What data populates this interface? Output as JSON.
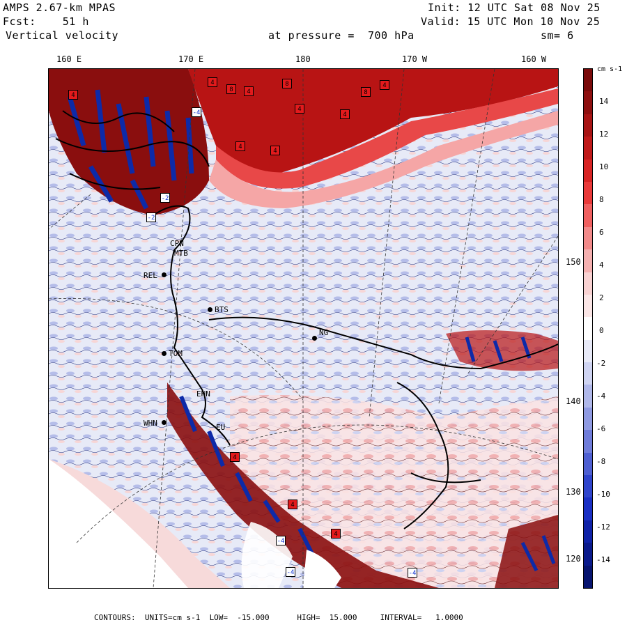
{
  "header": {
    "model": "AMPS 2.67-km MPAS",
    "fcst": "Fcst:    51 h",
    "field": "Vertical velocity",
    "init": "Init: 12 UTC Sat 08 Nov 25",
    "valid": "Valid: 15 UTC Mon 10 Nov 25",
    "pressure": "at pressure =  700 hPa",
    "smooth": "sm= 6"
  },
  "top_longitudes": [
    "160 E",
    "170 E",
    "180",
    "170 W",
    "160 W"
  ],
  "right_longitudes": [
    "150 W",
    "140 W",
    "130 W",
    "120 W"
  ],
  "colorbar": {
    "units_label": "cm s-1",
    "ticks": [
      "14",
      "12",
      "10",
      "8",
      "6",
      "4",
      "2",
      "0",
      "-2",
      "-4",
      "-6",
      "-8",
      "-10",
      "-12",
      "-14"
    ],
    "colors": [
      "#7a0a0a",
      "#8e0f0f",
      "#a81414",
      "#c01a1a",
      "#d82424",
      "#ea3a3a",
      "#f06060",
      "#f28a8a",
      "#f5b0b0",
      "#f9d2d2",
      "#fbe6e6",
      "#ffffff",
      "#e8eaf8",
      "#cfd4f2",
      "#b0b8ea",
      "#8f9ae2",
      "#6f7cda",
      "#4e5fd2",
      "#2f44cc",
      "#1a2fc4",
      "#0f22a8",
      "#0a1a8c",
      "#071470"
    ]
  },
  "stations": [
    {
      "code": "CPN"
    },
    {
      "code": "MTB"
    },
    {
      "code": "REL"
    },
    {
      "code": "BTS"
    },
    {
      "code": "NG"
    },
    {
      "code": "TOM"
    },
    {
      "code": "EHN"
    },
    {
      "code": "WHN"
    },
    {
      "code": "EU"
    }
  ],
  "markers": [
    {
      "label": "4",
      "kind": "r"
    },
    {
      "label": "4",
      "kind": "r"
    },
    {
      "label": "8",
      "kind": "r"
    },
    {
      "label": "4",
      "kind": "r"
    },
    {
      "label": "8",
      "kind": "r"
    },
    {
      "label": "4",
      "kind": "r"
    },
    {
      "label": "4",
      "kind": "r"
    },
    {
      "label": "8",
      "kind": "r"
    },
    {
      "label": "4",
      "kind": "r"
    },
    {
      "label": "4",
      "kind": "r"
    },
    {
      "label": "4",
      "kind": "r"
    },
    {
      "label": "-4",
      "kind": "b"
    },
    {
      "label": "-2",
      "kind": "b"
    },
    {
      "label": "-2",
      "kind": "b"
    },
    {
      "label": "4",
      "kind": "r"
    },
    {
      "label": "4",
      "kind": "r"
    },
    {
      "label": "-4",
      "kind": "b"
    },
    {
      "label": "-4",
      "kind": "b"
    },
    {
      "label": "4",
      "kind": "r"
    },
    {
      "label": "-4",
      "kind": "b"
    }
  ],
  "footer": {
    "contours": "CONTOURS:  UNITS=cm s-1  LOW=  -15.000      HIGH=  15.000     INTERVAL=   1.0000"
  }
}
